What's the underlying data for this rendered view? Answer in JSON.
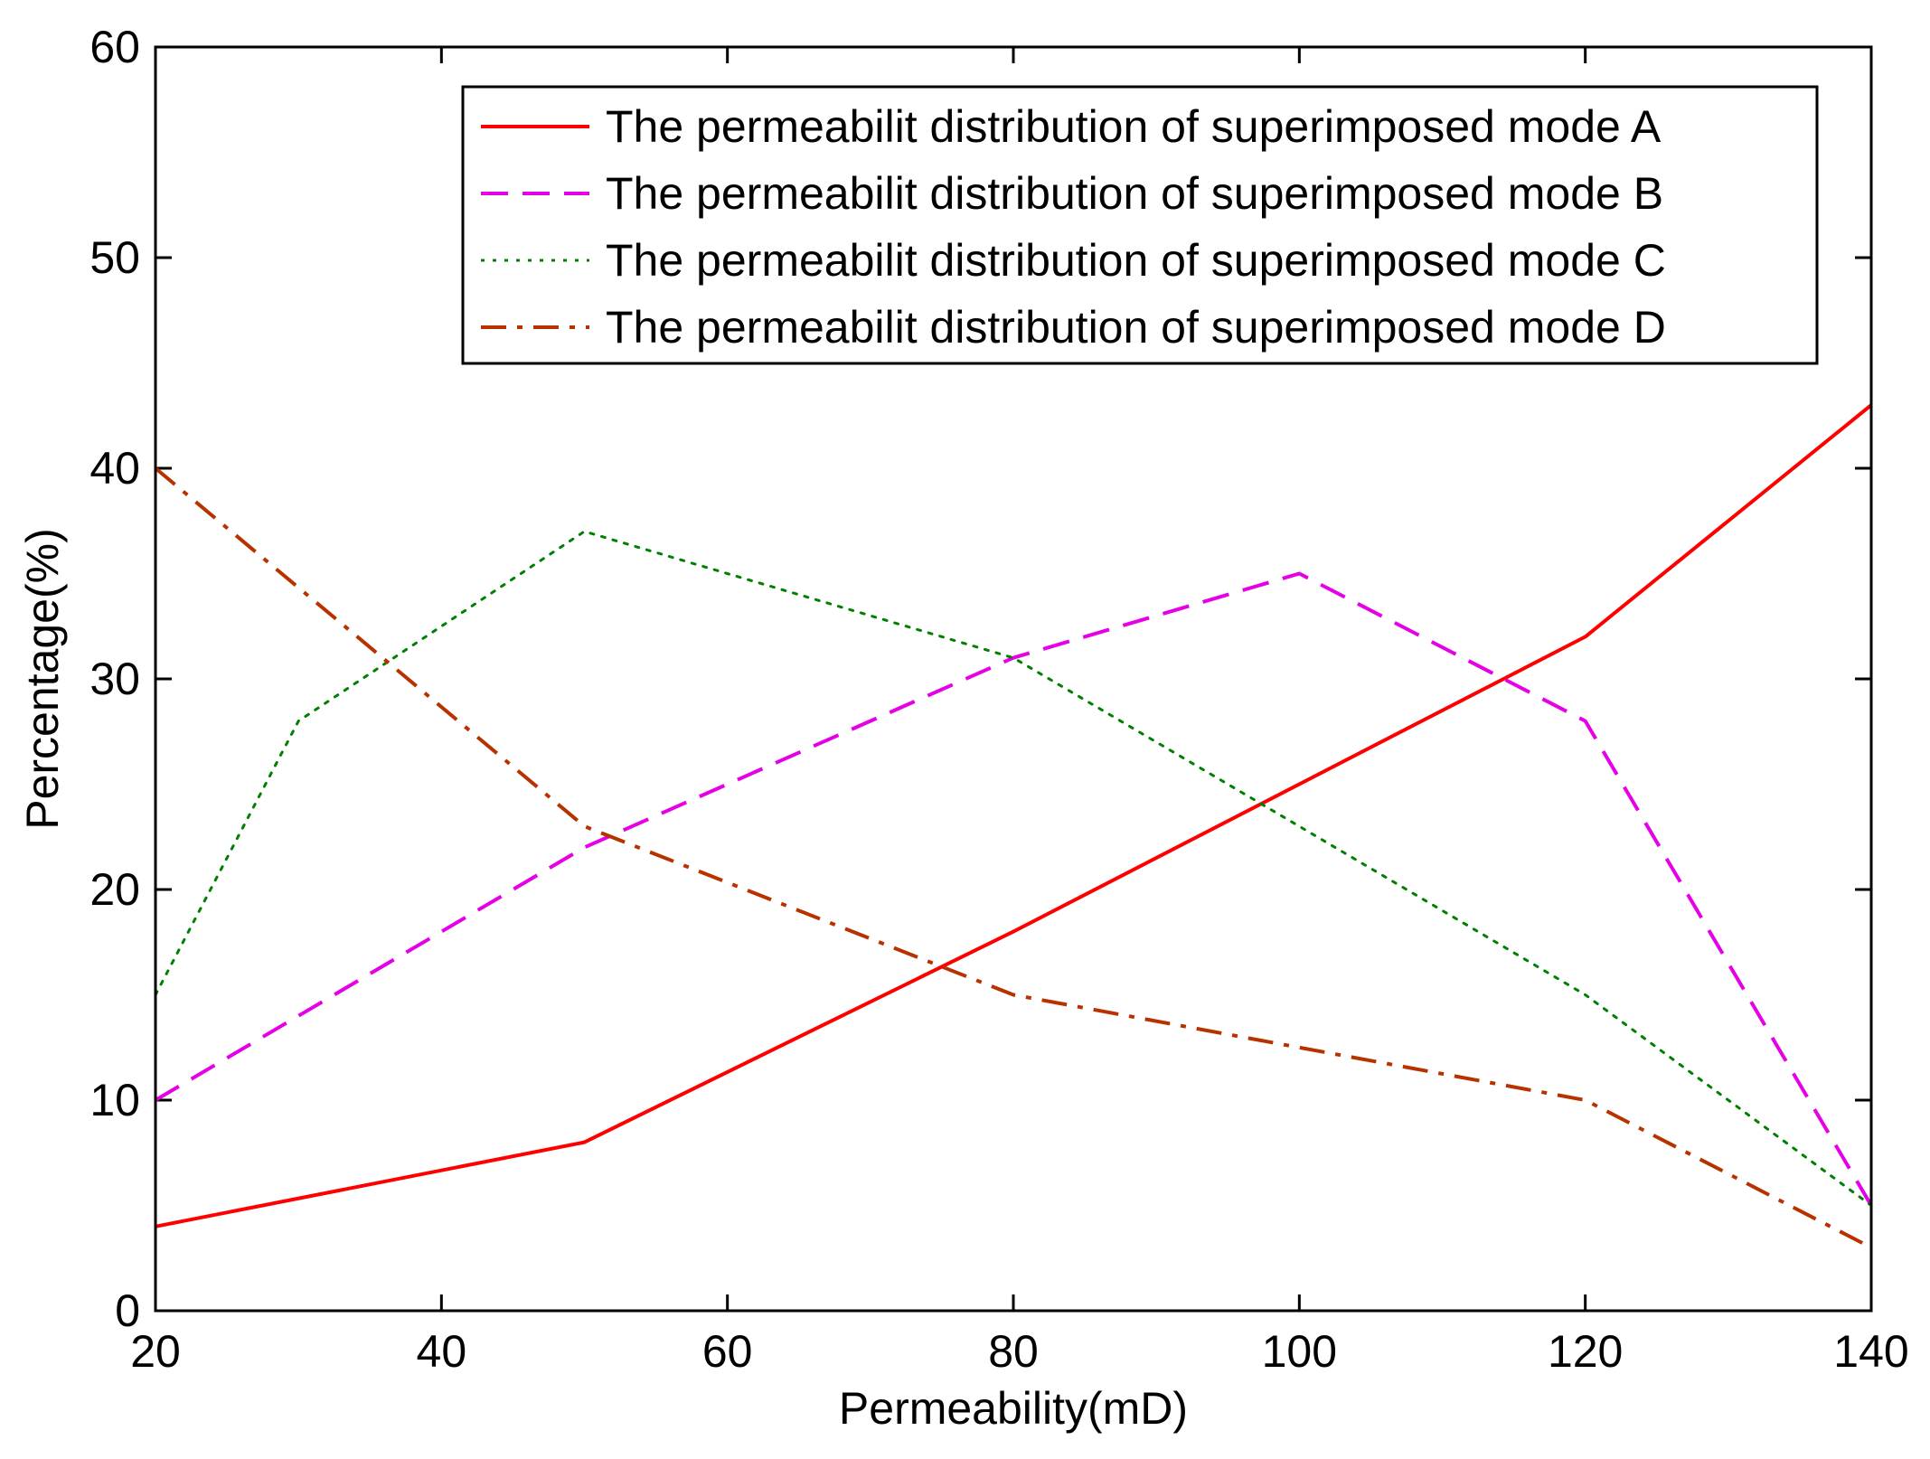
{
  "chart_data": {
    "type": "line",
    "title": "",
    "xlabel": "Permeability(mD)",
    "ylabel": "Percentage(%)",
    "xlim": [
      20,
      140
    ],
    "ylim": [
      0,
      60
    ],
    "xticks": [
      20,
      40,
      60,
      80,
      100,
      120,
      140
    ],
    "yticks": [
      0,
      10,
      20,
      30,
      40,
      50,
      60
    ],
    "grid": false,
    "legend_position": "top-right",
    "series": [
      {
        "name": "The permeabilit distribution of superimposed mode A",
        "color": "#ff0000",
        "style": "solid",
        "x": [
          20,
          50,
          80,
          100,
          120,
          140
        ],
        "y": [
          4,
          8,
          18,
          25,
          32,
          43
        ]
      },
      {
        "name": "The permeabilit distribution of superimposed mode B",
        "color": "#e600e6",
        "style": "dashed",
        "x": [
          20,
          50,
          80,
          100,
          120,
          140
        ],
        "y": [
          10,
          22,
          31,
          35,
          28,
          5
        ]
      },
      {
        "name": "The permeabilit distribution of superimposed mode C",
        "color": "#008000",
        "style": "dotted",
        "x": [
          20,
          30,
          50,
          80,
          100,
          120,
          140
        ],
        "y": [
          15,
          28,
          37,
          31,
          23,
          15,
          5
        ]
      },
      {
        "name": "The permeabilit distribution of superimposed mode D",
        "color": "#b83200",
        "style": "dashdot",
        "x": [
          20,
          50,
          80,
          100,
          120,
          140
        ],
        "y": [
          40,
          23,
          15,
          12.5,
          10,
          3
        ]
      }
    ]
  }
}
